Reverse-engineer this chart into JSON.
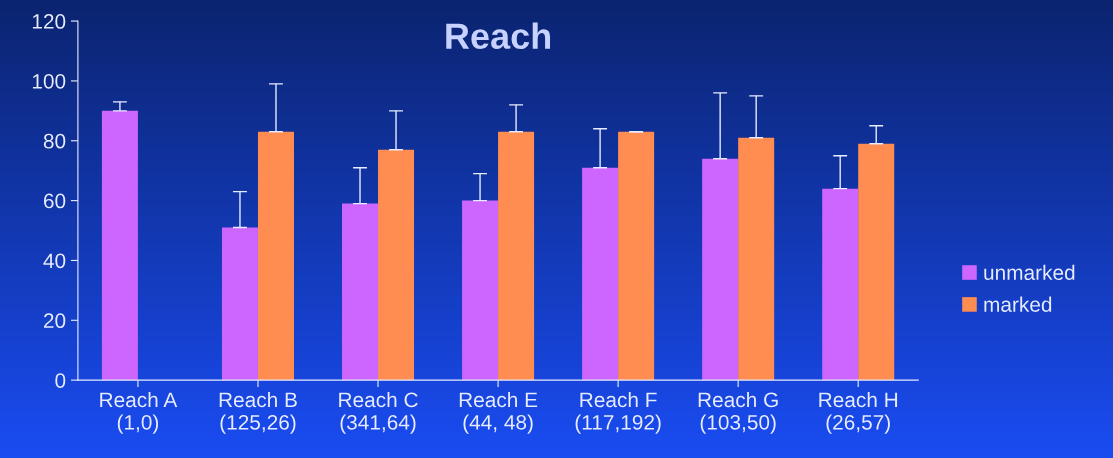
{
  "chart_data": {
    "type": "bar",
    "title": "Reach",
    "categories": [
      "Reach A\n(1,0)",
      "Reach B\n(125,26)",
      "Reach C\n(341,64)",
      "Reach E\n(44, 48)",
      "Reach F\n(117,192)",
      "Reach G\n(103,50)",
      "Reach H\n(26,57)"
    ],
    "series": [
      {
        "name": "unmarked",
        "color": "#cc66ff",
        "values": [
          90,
          51,
          59,
          60,
          71,
          74,
          64
        ],
        "errors": [
          [
            90,
            93
          ],
          [
            51,
            63
          ],
          [
            59,
            71
          ],
          [
            60,
            69
          ],
          [
            71,
            84
          ],
          [
            74,
            96
          ],
          [
            64,
            75
          ]
        ]
      },
      {
        "name": "marked",
        "color": "#ff8c50",
        "values": [
          null,
          83,
          77,
          83,
          83,
          81,
          79
        ],
        "errors": [
          null,
          [
            83,
            99
          ],
          [
            77,
            90
          ],
          [
            83,
            92
          ],
          [
            83,
            83
          ],
          [
            81,
            95
          ],
          [
            79,
            85
          ]
        ]
      }
    ],
    "ylim": [
      0,
      120
    ],
    "yticks": [
      0,
      20,
      40,
      60,
      80,
      100,
      120
    ],
    "grid": false,
    "legend": "right"
  }
}
